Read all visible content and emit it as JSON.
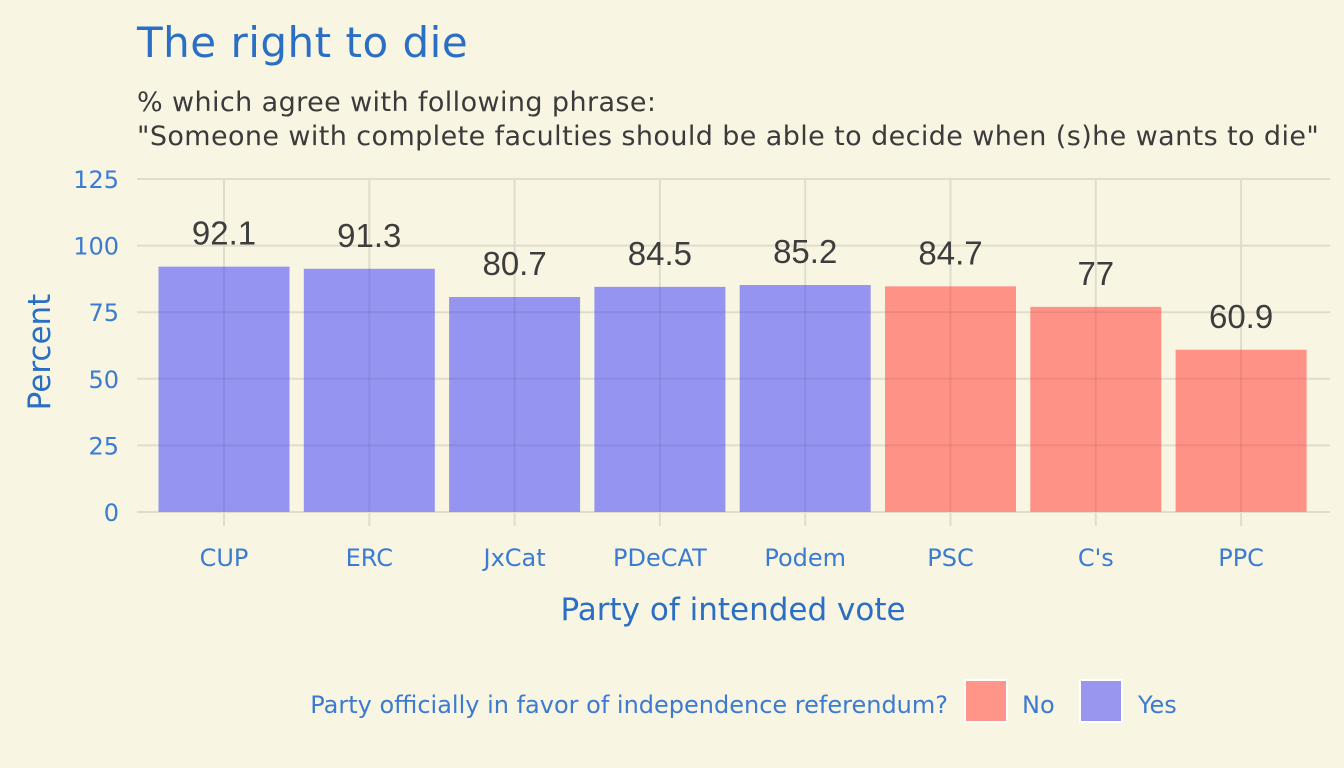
{
  "chart_data": {
    "type": "bar",
    "title": "The right to die",
    "subtitle": "% which agree with following phrase:\n\"Someone with complete faculties should be able to decide when (s)he wants to die\"",
    "xlabel": "Party of intended vote",
    "ylabel": "Percent",
    "ylim": [
      0,
      125
    ],
    "yticks": [
      0,
      25,
      50,
      75,
      100,
      125
    ],
    "grid": true,
    "categories": [
      "CUP",
      "ERC",
      "JxCat",
      "PDeCAT",
      "Podem",
      "PSC",
      "C's",
      "PPC"
    ],
    "values": [
      92.1,
      91.3,
      80.7,
      84.5,
      85.2,
      84.7,
      77,
      60.9
    ],
    "data_labels": [
      "92.1",
      "91.3",
      "80.7",
      "84.5",
      "85.2",
      "84.7",
      "77",
      "60.9"
    ],
    "groups": [
      "Yes",
      "Yes",
      "Yes",
      "Yes",
      "Yes",
      "No",
      "No",
      "No"
    ],
    "legend": {
      "title": "Party officially in favor of independence referendum?",
      "position": "bottom",
      "entries": [
        {
          "name": "No",
          "color": "#ff8a80"
        },
        {
          "name": "Yes",
          "color": "#8e8cf2"
        }
      ]
    },
    "colors": {
      "Yes": "#8e8cf2",
      "No": "#ff8a80"
    }
  }
}
